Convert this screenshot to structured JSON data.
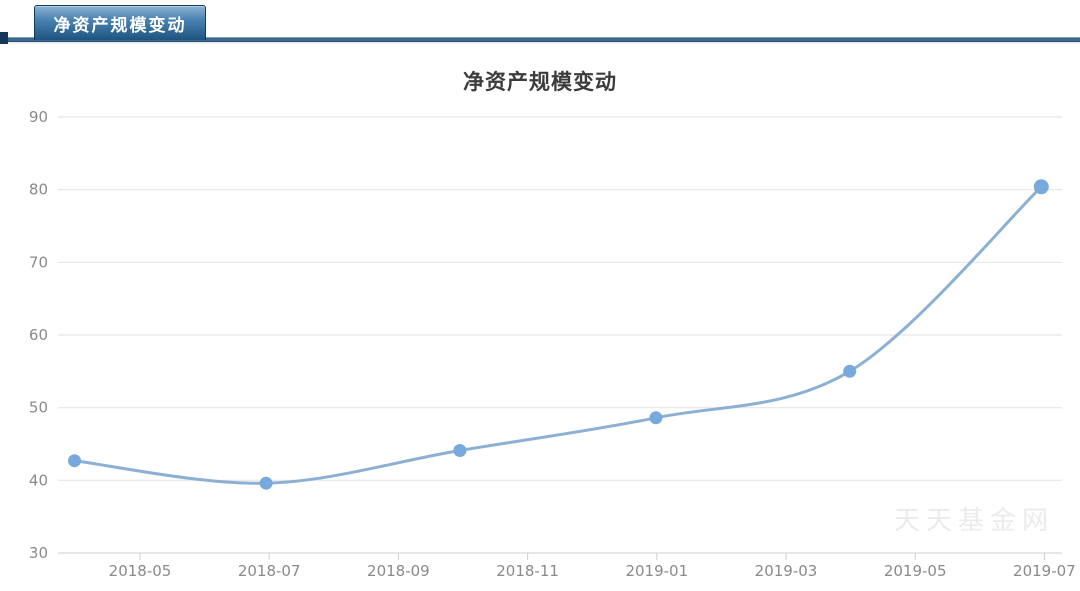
{
  "header": {
    "tab_label": "净资产规模变动"
  },
  "chart": {
    "title": "净资产规模变动",
    "watermark": "天天基金网"
  },
  "colors": {
    "tab_gradient_top": "#8fb3d2",
    "tab_gradient_mid": "#4a82b2",
    "tab_gradient_bottom": "#1d547f",
    "tab_border": "#0f3c63",
    "divider_top": "#a8bfd0",
    "divider_upper": "#2d5f88",
    "divider_lower": "#456f94",
    "divider_bottom": "#1a4466",
    "divider_cap": "#14375a",
    "line": "#8cb0d4",
    "point": "#78a9dd",
    "grid": "#e2e2e2",
    "axis": "#cfcfcf",
    "tick_label": "#8a8a8a",
    "title_text": "#3c3c3c",
    "watermark_text": "#ebebe9"
  },
  "chart_data": {
    "type": "line",
    "title": "净资产规模变动",
    "x": [
      "2018-03-31",
      "2018-06-30",
      "2018-09-30",
      "2018-12-31",
      "2019-03-31",
      "2019-06-30"
    ],
    "values": [
      42.7,
      39.6,
      44.1,
      48.6,
      55.0,
      80.4
    ],
    "x_tick_labels": [
      "2018-05",
      "2018-07",
      "2018-09",
      "2018-11",
      "2019-01",
      "2019-03",
      "2019-05",
      "2019-07"
    ],
    "y_ticks": [
      30,
      40,
      50,
      60,
      70,
      80,
      90
    ],
    "ylim": [
      30,
      90
    ],
    "xlabel": "",
    "ylabel": "",
    "smooth": true,
    "grid": true,
    "legend_position": "none"
  }
}
